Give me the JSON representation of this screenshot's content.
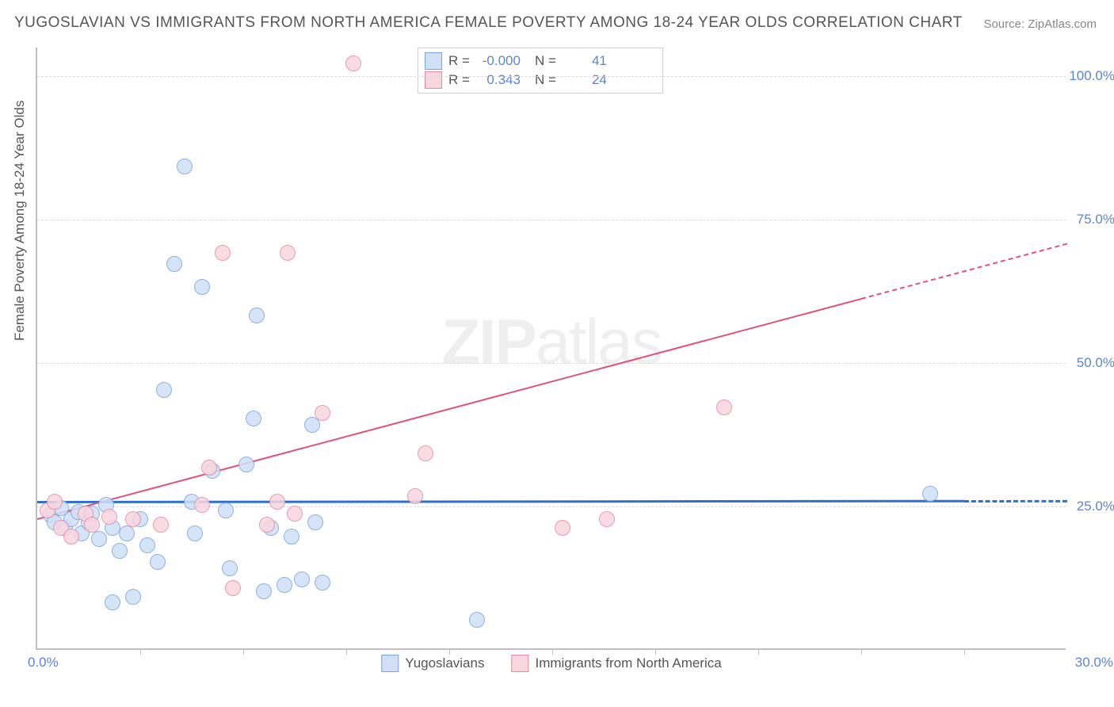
{
  "title": "YUGOSLAVIAN VS IMMIGRANTS FROM NORTH AMERICA FEMALE POVERTY AMONG 18-24 YEAR OLDS CORRELATION CHART",
  "source_label": "Source: ZipAtlas.com",
  "watermark": {
    "bold": "ZIP",
    "light": "atlas"
  },
  "ylabel": "Female Poverty Among 18-24 Year Olds",
  "chart": {
    "type": "scatter",
    "xlim": [
      0,
      30
    ],
    "ylim": [
      0,
      105
    ],
    "x_ticks_minor": [
      3,
      6,
      9,
      12,
      15,
      18,
      21,
      24,
      27
    ],
    "y_gridlines": [
      25,
      50,
      75,
      100
    ],
    "y_tick_labels": [
      "25.0%",
      "50.0%",
      "75.0%",
      "100.0%"
    ],
    "x_min_label": "0.0%",
    "x_max_label": "30.0%",
    "background_color": "#ffffff",
    "grid_color": "#dcdcdc",
    "axis_color": "#bfbfbf",
    "label_color": "#5b84d8",
    "marker_radius": 9,
    "series": [
      {
        "name": "Yugoslavians",
        "fill": "#cfe0f7",
        "stroke": "#7ba4e0",
        "stats": {
          "R": "-0.000",
          "N": "41"
        },
        "trend": {
          "y_at_x0": 26.0,
          "y_at_x30": 26.2,
          "color": "#2f6fd0",
          "width": 3,
          "dash_after_x": 27
        },
        "points": [
          {
            "x": 0.4,
            "y": 23.2
          },
          {
            "x": 0.5,
            "y": 22.0
          },
          {
            "x": 0.7,
            "y": 24.5
          },
          {
            "x": 0.8,
            "y": 21.0
          },
          {
            "x": 1.0,
            "y": 22.5
          },
          {
            "x": 1.2,
            "y": 23.8
          },
          {
            "x": 1.3,
            "y": 20.0
          },
          {
            "x": 1.5,
            "y": 22.0
          },
          {
            "x": 1.6,
            "y": 23.5
          },
          {
            "x": 1.8,
            "y": 19.0
          },
          {
            "x": 2.0,
            "y": 25.0
          },
          {
            "x": 2.2,
            "y": 21.0
          },
          {
            "x": 2.2,
            "y": 8.0
          },
          {
            "x": 2.4,
            "y": 17.0
          },
          {
            "x": 2.6,
            "y": 20.0
          },
          {
            "x": 2.8,
            "y": 9.0
          },
          {
            "x": 3.0,
            "y": 22.5
          },
          {
            "x": 3.2,
            "y": 18.0
          },
          {
            "x": 3.5,
            "y": 15.0
          },
          {
            "x": 3.7,
            "y": 45.0
          },
          {
            "x": 4.0,
            "y": 67.0
          },
          {
            "x": 4.3,
            "y": 84.0
          },
          {
            "x": 4.5,
            "y": 25.5
          },
          {
            "x": 4.6,
            "y": 20.0
          },
          {
            "x": 4.8,
            "y": 63.0
          },
          {
            "x": 5.1,
            "y": 31.0
          },
          {
            "x": 5.5,
            "y": 24.0
          },
          {
            "x": 5.6,
            "y": 14.0
          },
          {
            "x": 6.1,
            "y": 32.0
          },
          {
            "x": 6.3,
            "y": 40.0
          },
          {
            "x": 6.4,
            "y": 58.0
          },
          {
            "x": 6.6,
            "y": 10.0
          },
          {
            "x": 6.8,
            "y": 21.0
          },
          {
            "x": 7.2,
            "y": 11.0
          },
          {
            "x": 7.4,
            "y": 19.5
          },
          {
            "x": 7.7,
            "y": 12.0
          },
          {
            "x": 8.0,
            "y": 39.0
          },
          {
            "x": 8.1,
            "y": 22.0
          },
          {
            "x": 8.3,
            "y": 11.5
          },
          {
            "x": 12.8,
            "y": 5.0
          },
          {
            "x": 26.0,
            "y": 27.0
          }
        ]
      },
      {
        "name": "Immigrants from North America",
        "fill": "#f8d6df",
        "stroke": "#e48ba6",
        "stats": {
          "R": "0.343",
          "N": "24"
        },
        "trend": {
          "y_at_x0": 23.0,
          "y_at_x30": 71.0,
          "color": "#e0527a",
          "width": 2.5,
          "dash_after_x": 24
        },
        "points": [
          {
            "x": 0.3,
            "y": 24.0
          },
          {
            "x": 0.5,
            "y": 25.5
          },
          {
            "x": 0.7,
            "y": 21.0
          },
          {
            "x": 1.0,
            "y": 19.5
          },
          {
            "x": 1.4,
            "y": 23.5
          },
          {
            "x": 1.6,
            "y": 21.5
          },
          {
            "x": 2.1,
            "y": 23.0
          },
          {
            "x": 2.8,
            "y": 22.5
          },
          {
            "x": 3.6,
            "y": 21.5
          },
          {
            "x": 4.8,
            "y": 25.0
          },
          {
            "x": 5.0,
            "y": 31.5
          },
          {
            "x": 5.4,
            "y": 69.0
          },
          {
            "x": 5.7,
            "y": 10.5
          },
          {
            "x": 6.7,
            "y": 21.5
          },
          {
            "x": 7.0,
            "y": 25.5
          },
          {
            "x": 7.3,
            "y": 69.0
          },
          {
            "x": 7.5,
            "y": 23.5
          },
          {
            "x": 8.3,
            "y": 41.0
          },
          {
            "x": 9.2,
            "y": 102.0
          },
          {
            "x": 11.3,
            "y": 34.0
          },
          {
            "x": 11.0,
            "y": 26.5
          },
          {
            "x": 15.3,
            "y": 21.0
          },
          {
            "x": 16.6,
            "y": 22.5
          },
          {
            "x": 20.0,
            "y": 42.0
          }
        ]
      }
    ],
    "legend_bottom": [
      {
        "label": "Yugoslavians",
        "fill": "#cfe0f7",
        "stroke": "#7ba4e0"
      },
      {
        "label": "Immigrants from North America",
        "fill": "#f8d6df",
        "stroke": "#e48ba6"
      }
    ]
  }
}
